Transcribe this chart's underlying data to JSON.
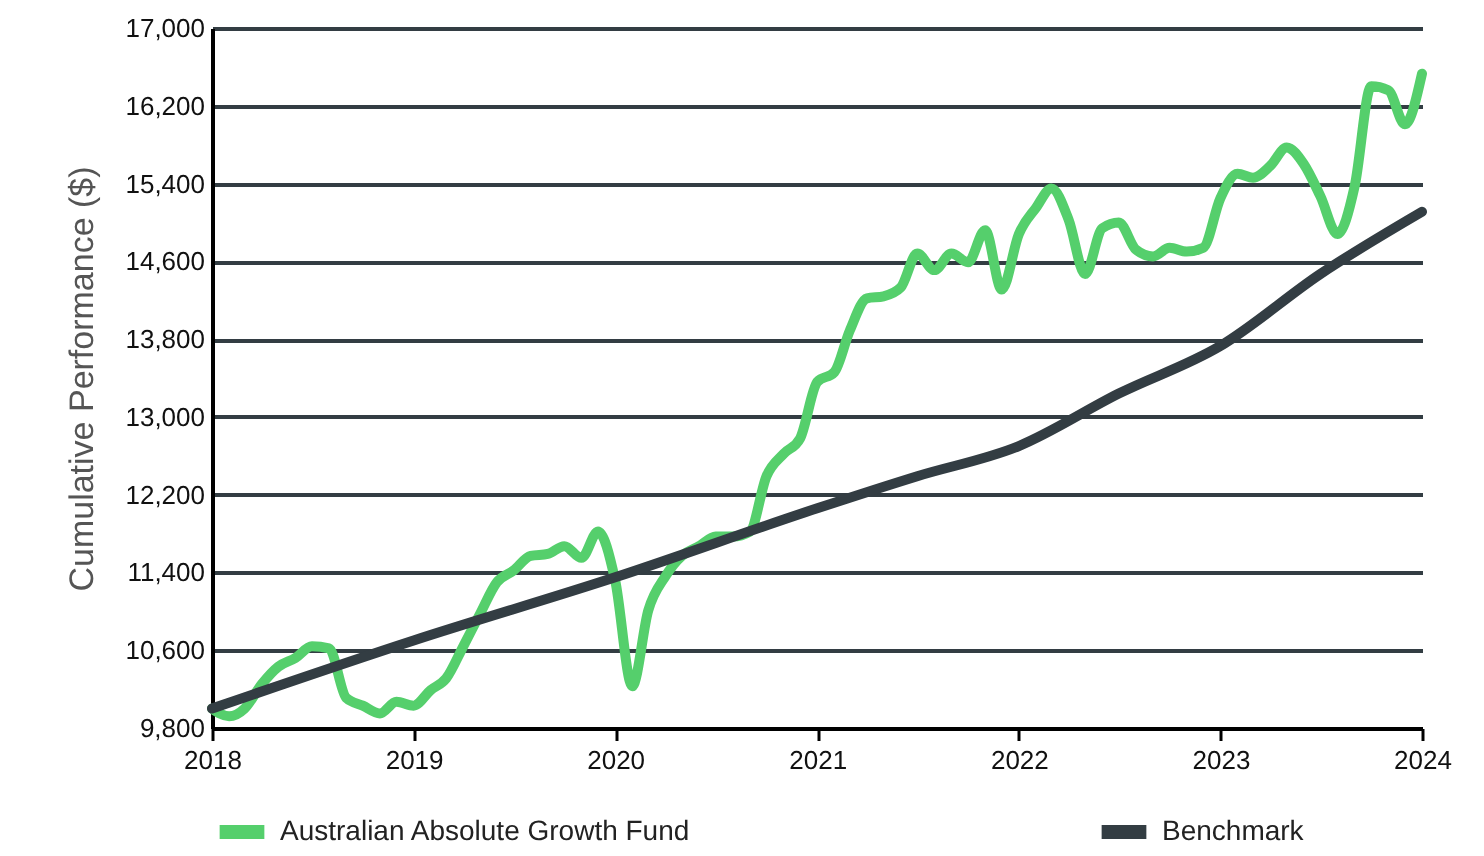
{
  "chart_data": {
    "type": "line",
    "ylabel": "Cumulative Performance ($)",
    "x": [
      "2018-01",
      "2018-02",
      "2018-03",
      "2018-04",
      "2018-05",
      "2018-06",
      "2018-07",
      "2018-08",
      "2018-09",
      "2018-10",
      "2018-11",
      "2018-12",
      "2019-01",
      "2019-02",
      "2019-03",
      "2019-04",
      "2019-05",
      "2019-06",
      "2019-07",
      "2019-08",
      "2019-09",
      "2019-10",
      "2019-11",
      "2019-12",
      "2020-01",
      "2020-02",
      "2020-03",
      "2020-04",
      "2020-05",
      "2020-06",
      "2020-07",
      "2020-08",
      "2020-09",
      "2020-10",
      "2020-11",
      "2020-12",
      "2021-01",
      "2021-02",
      "2021-03",
      "2021-04",
      "2021-05",
      "2021-06",
      "2021-07",
      "2021-08",
      "2021-09",
      "2021-10",
      "2021-11",
      "2021-12",
      "2022-01",
      "2022-02",
      "2022-03",
      "2022-04",
      "2022-05",
      "2022-06",
      "2022-07",
      "2022-08",
      "2022-09",
      "2022-10",
      "2022-11",
      "2022-12",
      "2023-01",
      "2023-02",
      "2023-03",
      "2023-04",
      "2023-05",
      "2023-06",
      "2023-07",
      "2023-08",
      "2023-09",
      "2023-10",
      "2023-11",
      "2023-12",
      "2024-01"
    ],
    "series": [
      {
        "name": "Australian Absolute Growth Fund",
        "color": "#55cf6c",
        "values": [
          10000,
          9920,
          10000,
          10250,
          10430,
          10520,
          10640,
          10620,
          10110,
          10030,
          9950,
          10070,
          10030,
          10190,
          10310,
          10640,
          10970,
          11300,
          11420,
          11570,
          11590,
          11670,
          11550,
          11820,
          11320,
          10230,
          11010,
          11360,
          11570,
          11670,
          11770,
          11770,
          11820,
          12390,
          12620,
          12780,
          13360,
          13460,
          13890,
          14220,
          14240,
          14330,
          14680,
          14510,
          14680,
          14590,
          14920,
          14310,
          14880,
          15150,
          15350,
          15030,
          14470,
          14940,
          15000,
          14720,
          14650,
          14740,
          14700,
          14740,
          15250,
          15500,
          15460,
          15580,
          15770,
          15600,
          15270,
          14880,
          15370,
          16400,
          16360,
          16010,
          16530
        ]
      },
      {
        "name": "Benchmark",
        "color": "#333d43",
        "x": [
          "2018-01",
          "2019-01",
          "2020-01",
          "2021-01",
          "2021-07",
          "2022-01",
          "2022-07",
          "2023-01",
          "2023-07",
          "2024-01"
        ],
        "values": [
          10000,
          10700,
          11350,
          12060,
          12390,
          12700,
          13240,
          13730,
          14470,
          15110
        ]
      }
    ],
    "xlim": [
      "2018-01",
      "2024-01"
    ],
    "xticks": [
      {
        "value": "2018",
        "label": "2018"
      },
      {
        "value": "2019",
        "label": "2019"
      },
      {
        "value": "2020",
        "label": "2020"
      },
      {
        "value": "2021",
        "label": "2021"
      },
      {
        "value": "2022",
        "label": "2022"
      },
      {
        "value": "2023",
        "label": "2023"
      },
      {
        "value": "2024",
        "label": "2024"
      }
    ],
    "ylim": [
      9800,
      17000
    ],
    "yticks": [
      {
        "value": 9800,
        "label": "9,800"
      },
      {
        "value": 10600,
        "label": "10,600"
      },
      {
        "value": 11400,
        "label": "11,400"
      },
      {
        "value": 12200,
        "label": "12,200"
      },
      {
        "value": 13000,
        "label": "13,000"
      },
      {
        "value": 13800,
        "label": "13,800"
      },
      {
        "value": 14600,
        "label": "14,600"
      },
      {
        "value": 15400,
        "label": "15,400"
      },
      {
        "value": 16200,
        "label": "16,200"
      },
      {
        "value": 17000,
        "label": "17,000"
      }
    ],
    "grid": "y",
    "legend": "bottom",
    "marker": "none",
    "line_style": "solid"
  }
}
